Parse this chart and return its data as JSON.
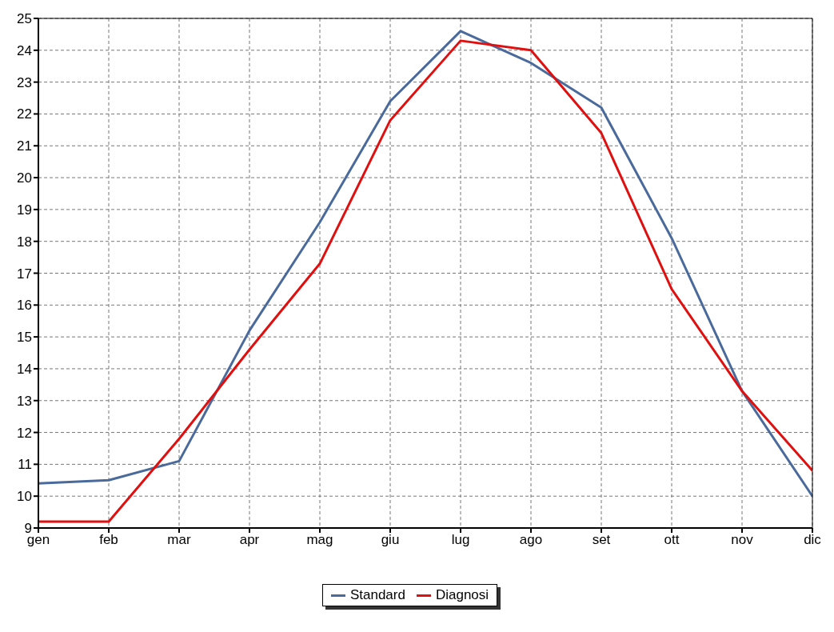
{
  "chart_data": {
    "type": "line",
    "categories": [
      "gen",
      "feb",
      "mar",
      "apr",
      "mag",
      "giu",
      "lug",
      "ago",
      "set",
      "ott",
      "nov",
      "dic"
    ],
    "series": [
      {
        "name": "Standard",
        "color": "#4a6a9c",
        "values": [
          10.4,
          10.5,
          11.1,
          15.2,
          18.6,
          22.4,
          24.6,
          23.6,
          22.2,
          18.1,
          13.3,
          10.0
        ]
      },
      {
        "name": "Diagnosi",
        "color": "#e01010",
        "values": [
          9.2,
          9.2,
          11.8,
          14.6,
          17.3,
          21.8,
          24.3,
          24.0,
          21.4,
          16.5,
          13.3,
          10.8
        ]
      }
    ],
    "ylim": [
      9,
      25
    ],
    "yticks": [
      9,
      10,
      11,
      12,
      13,
      14,
      15,
      16,
      17,
      18,
      19,
      20,
      21,
      22,
      23,
      24,
      25
    ],
    "grid": true,
    "legend": "bottom",
    "marker": "none",
    "line_style": "solid"
  }
}
